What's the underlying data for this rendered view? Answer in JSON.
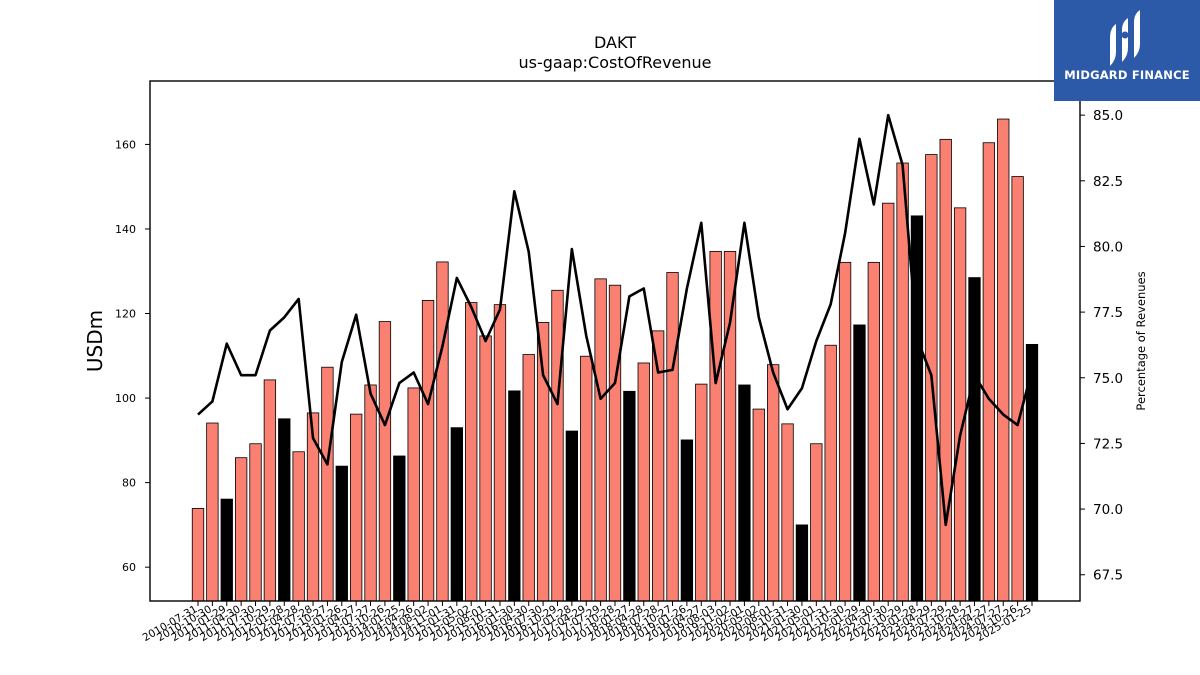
{
  "brand": {
    "name": "MIDGARD FINANCE"
  },
  "chart_data": {
    "type": "bar",
    "title": "DAKT",
    "subtitle": "us-gaap:CostOfRevenue",
    "ylabel": "USDm",
    "y2label": "Percentage of Revenues",
    "ylim": [
      52.0,
      175.0
    ],
    "y2lim": [
      66.5,
      86.3
    ],
    "yticks": [
      60,
      80,
      100,
      120,
      140,
      160
    ],
    "y2ticks": [
      67.5,
      70.0,
      72.5,
      75.0,
      77.5,
      80.0,
      82.5,
      85.0
    ],
    "colors": {
      "quarter_bar": "#fa8072",
      "annual_bar": "#000000",
      "bar_edge": "#000000",
      "line": "#000000"
    },
    "categories": [
      "2010-07-31",
      "2010-10-30",
      "2011-01-29",
      "2011-04-30",
      "2011-07-30",
      "2011-10-29",
      "2012-01-28",
      "2012-04-28",
      "2012-07-28",
      "2012-10-27",
      "2013-01-26",
      "2013-04-27",
      "2013-07-27",
      "2013-10-26",
      "2014-01-25",
      "2014-04-26",
      "2014-08-02",
      "2014-11-01",
      "2015-01-31",
      "2015-05-02",
      "2015-08-01",
      "2015-10-31",
      "2016-01-30",
      "2016-04-30",
      "2016-07-30",
      "2016-10-29",
      "2017-01-28",
      "2017-04-29",
      "2017-07-29",
      "2017-10-28",
      "2018-01-27",
      "2018-04-28",
      "2018-07-28",
      "2018-10-27",
      "2019-01-26",
      "2019-04-27",
      "2019-08-03",
      "2019-11-02",
      "2020-02-01",
      "2020-05-02",
      "2020-08-01",
      "2020-10-31",
      "2021-01-30",
      "2021-05-01",
      "2021-07-31",
      "2021-10-30",
      "2022-01-29",
      "2022-04-30",
      "2022-07-30",
      "2022-10-29",
      "2023-01-28",
      "2023-04-29",
      "2023-07-29",
      "2023-10-28",
      "2024-01-27",
      "2024-04-27",
      "2024-07-27",
      "2024-10-26",
      "2025-01-25"
    ],
    "series": [
      {
        "kind": "bar",
        "values": [
          73.9,
          94.1,
          76.1,
          85.9,
          89.2,
          104.3,
          95.1,
          87.3,
          96.5,
          107.3,
          83.9,
          96.2,
          103.1,
          118.1,
          86.3,
          102.4,
          123.1,
          132.2,
          93.0,
          122.6,
          114.7,
          122.1,
          101.7,
          110.3,
          117.9,
          125.5,
          92.2,
          109.9,
          128.2,
          126.7,
          101.6,
          108.3,
          115.9,
          129.7,
          90.1,
          103.3,
          134.7,
          134.7,
          103.1,
          97.4,
          107.9,
          93.9,
          70.0,
          89.2,
          112.5,
          132.1,
          117.3,
          132.1,
          146.1,
          155.6,
          143.1,
          157.6,
          161.2,
          145.0,
          128.5,
          160.4,
          166.0,
          152.4,
          112.7
        ],
        "annual": [
          false,
          false,
          true,
          false,
          false,
          false,
          true,
          false,
          false,
          false,
          true,
          false,
          false,
          false,
          true,
          false,
          false,
          false,
          true,
          false,
          false,
          false,
          true,
          false,
          false,
          false,
          true,
          false,
          false,
          false,
          true,
          false,
          false,
          false,
          true,
          false,
          false,
          false,
          true,
          false,
          false,
          false,
          true,
          false,
          false,
          false,
          true,
          false,
          false,
          false,
          true,
          false,
          false,
          false,
          true,
          false,
          false,
          false,
          true
        ]
      },
      {
        "kind": "line",
        "axis": "right",
        "values": [
          73.6,
          74.1,
          76.3,
          75.1,
          75.1,
          76.8,
          77.3,
          78.0,
          72.7,
          71.7,
          75.6,
          77.4,
          74.4,
          73.2,
          74.8,
          75.2,
          74.0,
          76.2,
          78.8,
          77.7,
          76.4,
          77.6,
          82.1,
          79.8,
          75.1,
          74.0,
          79.9,
          76.6,
          74.2,
          74.8,
          78.1,
          78.4,
          75.2,
          75.3,
          78.4,
          80.9,
          74.8,
          77.1,
          80.9,
          77.3,
          75.2,
          73.8,
          74.6,
          76.4,
          77.8,
          80.5,
          84.1,
          81.6,
          85.0,
          83.1,
          76.5,
          75.1,
          69.4,
          72.8,
          75.1,
          74.2,
          73.6,
          73.2,
          75.3
        ]
      }
    ]
  }
}
